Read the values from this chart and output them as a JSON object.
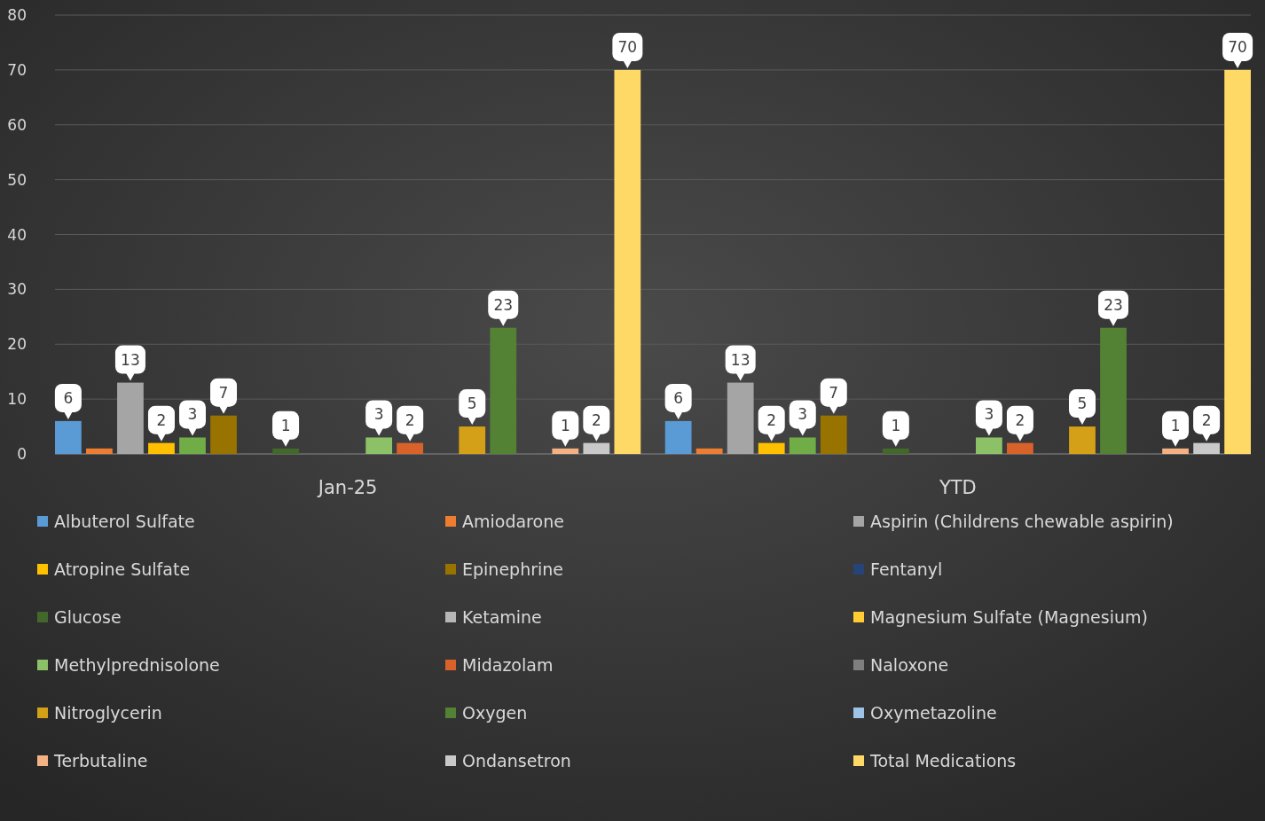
{
  "chart_data": {
    "type": "bar",
    "categories": [
      "Jan-25",
      "YTD"
    ],
    "ylim": [
      0,
      80
    ],
    "yticks": [
      0,
      10,
      20,
      30,
      40,
      50,
      60,
      70,
      80
    ],
    "grid": "y",
    "legend": "bottom",
    "series": [
      {
        "name": "Albuterol Sulfate",
        "color": "#5b9bd5",
        "values": [
          6,
          6
        ],
        "value_labels": [
          "6",
          "6"
        ]
      },
      {
        "name": "Amiodarone",
        "color": "#ed7d31",
        "values": [
          1,
          1
        ],
        "value_labels": [
          null,
          null
        ]
      },
      {
        "name": "Aspirin (Childrens chewable aspirin)",
        "color": "#a5a5a5",
        "values": [
          13,
          13
        ],
        "value_labels": [
          "13",
          "13"
        ]
      },
      {
        "name": "Atropine Sulfate",
        "color": "#ffc000",
        "values": [
          2,
          2
        ],
        "value_labels": [
          "2",
          "2"
        ]
      },
      {
        "color": "#70ad47",
        "values": [
          3,
          3
        ],
        "value_labels": [
          "3",
          "3"
        ]
      },
      {
        "name": "Epinephrine",
        "color": "#997300",
        "values": [
          7,
          7
        ],
        "value_labels": [
          "7",
          "7"
        ]
      },
      {
        "name": "Fentanyl",
        "color": "#264478",
        "values": [
          0,
          0
        ],
        "value_labels": [
          null,
          null
        ]
      },
      {
        "name": "Glucose",
        "color": "#43682b",
        "values": [
          1,
          1
        ],
        "value_labels": [
          "1",
          "1"
        ]
      },
      {
        "name": "Ketamine",
        "color": "#b7b7b7",
        "values": [
          0,
          0
        ],
        "value_labels": [
          null,
          null
        ]
      },
      {
        "name": "Magnesium Sulfate (Magnesium)",
        "color": "#ffcd33",
        "values": [
          0,
          0
        ],
        "value_labels": [
          null,
          null
        ]
      },
      {
        "name": "Methylprednisolone",
        "color": "#8cc168",
        "values": [
          3,
          3
        ],
        "value_labels": [
          "3",
          "3"
        ]
      },
      {
        "name": "Midazolam",
        "color": "#d9622b",
        "values": [
          2,
          2
        ],
        "value_labels": [
          "2",
          "2"
        ]
      },
      {
        "name": "Naloxone",
        "color": "#7f7f7f",
        "values": [
          0,
          0
        ],
        "value_labels": [
          null,
          null
        ]
      },
      {
        "name": "Nitroglycerin",
        "color": "#d4a017",
        "values": [
          5,
          5
        ],
        "value_labels": [
          "5",
          "5"
        ]
      },
      {
        "name": "Oxygen",
        "color": "#548235",
        "values": [
          23,
          23
        ],
        "value_labels": [
          "23",
          "23"
        ]
      },
      {
        "name": "Oxymetazoline",
        "color": "#9dc3e6",
        "values": [
          0,
          0
        ],
        "value_labels": [
          null,
          null
        ]
      },
      {
        "name": "Terbutaline",
        "color": "#f4b183",
        "values": [
          1,
          1
        ],
        "value_labels": [
          "1",
          "1"
        ]
      },
      {
        "name": "Ondansetron",
        "color": "#c9c9c9",
        "values": [
          2,
          2
        ],
        "value_labels": [
          "2",
          "2"
        ]
      },
      {
        "name": "Total Medications",
        "color": "#ffd966",
        "values": [
          70,
          70
        ],
        "value_labels": [
          "70",
          "70"
        ]
      }
    ]
  }
}
